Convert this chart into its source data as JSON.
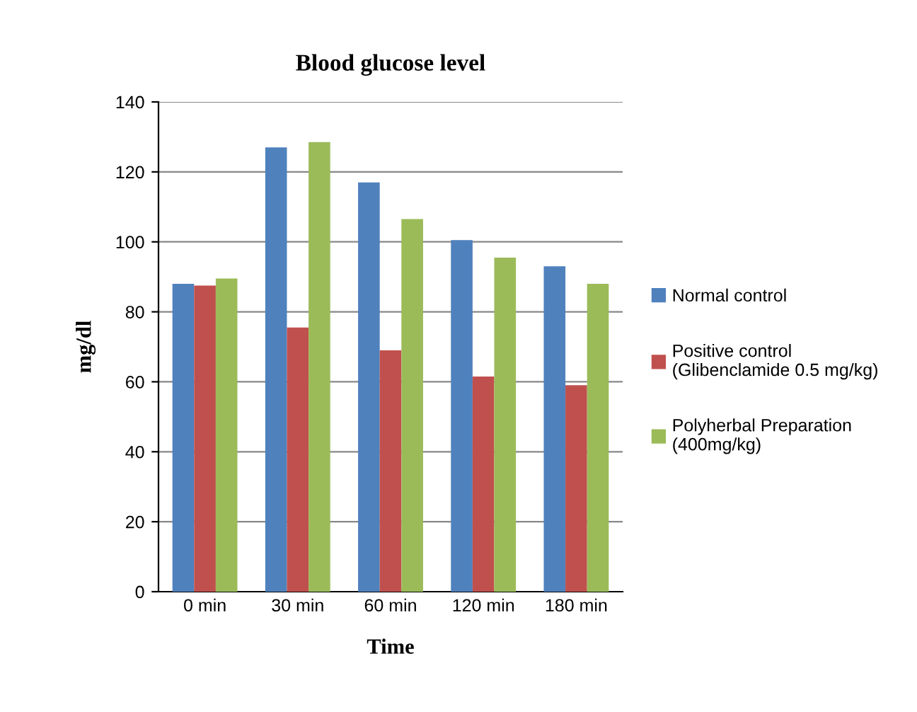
{
  "chart_data": {
    "type": "bar",
    "title": "Blood glucose level",
    "xlabel": "Time",
    "ylabel": "mg/dl",
    "categories": [
      "0 min",
      "30 min",
      "60 min",
      "120 min",
      "180 min"
    ],
    "series": [
      {
        "name": "Normal control",
        "color": "#4f81bd",
        "values": [
          88,
          127,
          117,
          100.5,
          93
        ]
      },
      {
        "name": "Positive control\n(Glibenclamide 0.5 mg/kg)",
        "color": "#c0504d",
        "values": [
          87.5,
          75.5,
          69,
          61.5,
          59
        ]
      },
      {
        "name": "Polyherbal Preparation\n(400mg/kg)",
        "color": "#9bbb59",
        "values": [
          89.5,
          128.5,
          106.5,
          95.5,
          88
        ]
      }
    ],
    "ylim": [
      0,
      140
    ],
    "yticks": [
      0,
      20,
      40,
      60,
      80,
      100,
      120,
      140
    ],
    "grid": "y",
    "legend": "right"
  }
}
